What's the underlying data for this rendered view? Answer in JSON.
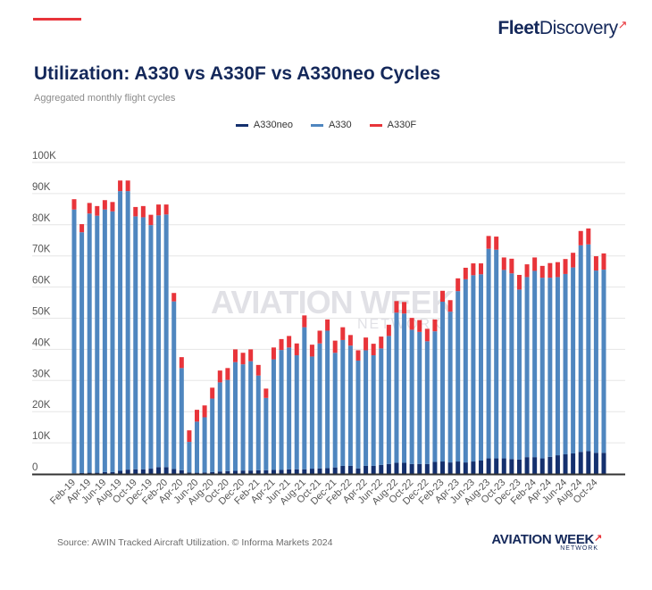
{
  "header": {
    "brand_bold": "Fleet",
    "brand_light": "Discovery",
    "brand_mark": "↗"
  },
  "watermark": {
    "main": "AVIATION WEEK",
    "sub": "NETWORK"
  },
  "footer": {
    "source": "Source: AWIN Tracked Aircraft Utilization. © Informa Markets 2024",
    "logo_main": "AVIATION WEEK",
    "logo_sub": "NETWORK",
    "logo_mark": "↗"
  },
  "colors": {
    "A330neo": "#14306e",
    "A330": "#4f86bf",
    "A330F": "#e8343a",
    "grid": "#e6e6e6",
    "axis": "#333333"
  },
  "chart_data": {
    "type": "bar",
    "stacked": true,
    "title": "Utilization: A330 vs A330F vs A330neo Cycles",
    "subtitle": "Aggregated monthly flight cycles",
    "xlabel": "",
    "ylabel": "",
    "ylim": [
      0,
      100000
    ],
    "yticks": [
      0,
      10000,
      20000,
      30000,
      40000,
      50000,
      60000,
      70000,
      80000,
      90000,
      100000
    ],
    "ytick_labels": [
      "0",
      "10K",
      "20K",
      "30K",
      "40K",
      "50K",
      "60K",
      "70K",
      "80K",
      "90K",
      "100K"
    ],
    "grid": true,
    "legend": {
      "position": "top-center",
      "entries": [
        "A330neo",
        "A330",
        "A330F"
      ]
    },
    "categories": [
      "Feb-19",
      "Mar-19",
      "Apr-19",
      "May-19",
      "Jun-19",
      "Jul-19",
      "Aug-19",
      "Sep-19",
      "Oct-19",
      "Nov-19",
      "Dec-19",
      "Jan-20",
      "Feb-20",
      "Mar-20",
      "Apr-20",
      "May-20",
      "Jun-20",
      "Jul-20",
      "Aug-20",
      "Sep-20",
      "Oct-20",
      "Nov-20",
      "Dec-20",
      "Jan-21",
      "Feb-21",
      "Mar-21",
      "Apr-21",
      "May-21",
      "Jun-21",
      "Jul-21",
      "Aug-21",
      "Sep-21",
      "Oct-21",
      "Nov-21",
      "Dec-21",
      "Jan-22",
      "Feb-22",
      "Mar-22",
      "Apr-22",
      "May-22",
      "Jun-22",
      "Jul-22",
      "Aug-22",
      "Sep-22",
      "Oct-22",
      "Nov-22",
      "Dec-22",
      "Jan-23",
      "Feb-23",
      "Mar-23",
      "Apr-23",
      "May-23",
      "Jun-23",
      "Jul-23",
      "Aug-23",
      "Sep-23",
      "Oct-23",
      "Nov-23",
      "Dec-23",
      "Jan-24",
      "Feb-24",
      "Mar-24",
      "Apr-24",
      "May-24",
      "Jun-24",
      "Jul-24",
      "Aug-24",
      "Sep-24",
      "Oct-24",
      "Nov-24"
    ],
    "xtick_labels_shown": [
      "Feb-19",
      "Apr-19",
      "Jun-19",
      "Aug-19",
      "Oct-19",
      "Dec-19",
      "Feb-20",
      "Apr-20",
      "Jun-20",
      "Aug-20",
      "Oct-20",
      "Dec-20",
      "Feb-21",
      "Apr-21",
      "Jun-21",
      "Aug-21",
      "Oct-21",
      "Dec-21",
      "Feb-22",
      "Apr-22",
      "Jun-22",
      "Aug-22",
      "Oct-22",
      "Dec-22",
      "Feb-23",
      "Apr-23",
      "Jun-23",
      "Aug-23",
      "Oct-23",
      "Dec-23",
      "Feb-24",
      "Apr-24",
      "Jun-24",
      "Aug-24",
      "Oct-24"
    ],
    "series": [
      {
        "name": "A330neo",
        "values": [
          200,
          300,
          400,
          400,
          600,
          600,
          1000,
          1400,
          1500,
          1500,
          1700,
          2200,
          2200,
          1600,
          1200,
          500,
          400,
          500,
          600,
          800,
          900,
          1000,
          1100,
          1100,
          1200,
          1200,
          1300,
          1300,
          1500,
          1500,
          1500,
          1700,
          1800,
          1900,
          2100,
          2600,
          2600,
          1800,
          2600,
          2600,
          2900,
          3200,
          3600,
          3600,
          3200,
          3200,
          3200,
          3900,
          4000,
          3700,
          4000,
          3700,
          4000,
          4300,
          5000,
          5000,
          5000,
          4800,
          4600,
          5400,
          5400,
          5000,
          5500,
          6000,
          6300,
          6600,
          7100,
          7300,
          6800,
          6800
        ]
      },
      {
        "name": "A330",
        "values": [
          84700,
          77300,
          83200,
          82500,
          84300,
          83700,
          89800,
          89400,
          81200,
          80900,
          78200,
          80800,
          81100,
          53800,
          32800,
          9800,
          16400,
          17700,
          23600,
          28600,
          29300,
          34900,
          34100,
          35100,
          30400,
          23200,
          35500,
          38500,
          39100,
          36600,
          45600,
          36000,
          40100,
          44100,
          36800,
          40400,
          38600,
          34600,
          37100,
          35500,
          37400,
          41100,
          48200,
          47900,
          43100,
          42400,
          39400,
          41900,
          51300,
          48400,
          54700,
          58800,
          59800,
          59800,
          67300,
          67000,
          60500,
          59600,
          54600,
          57800,
          59800,
          58000,
          57500,
          57200,
          57900,
          59700,
          66300,
          66400,
          58500,
          58800
        ]
      },
      {
        "name": "A330F",
        "values": [
          3300,
          2600,
          3400,
          3100,
          3000,
          3000,
          3400,
          3400,
          3000,
          3600,
          3300,
          3500,
          3200,
          2700,
          3500,
          3700,
          3800,
          3800,
          3500,
          3800,
          3800,
          4100,
          3700,
          3800,
          3400,
          3000,
          3800,
          3500,
          3700,
          3800,
          3800,
          3800,
          4100,
          3600,
          3900,
          4100,
          3400,
          3300,
          4100,
          3700,
          3800,
          3600,
          3700,
          3700,
          3800,
          3800,
          4000,
          3800,
          3500,
          3700,
          4100,
          3700,
          3800,
          3500,
          4100,
          4200,
          4000,
          4700,
          4700,
          4100,
          4300,
          3800,
          4700,
          4800,
          4800,
          4700,
          4600,
          5100,
          4600,
          5200
        ]
      }
    ]
  }
}
